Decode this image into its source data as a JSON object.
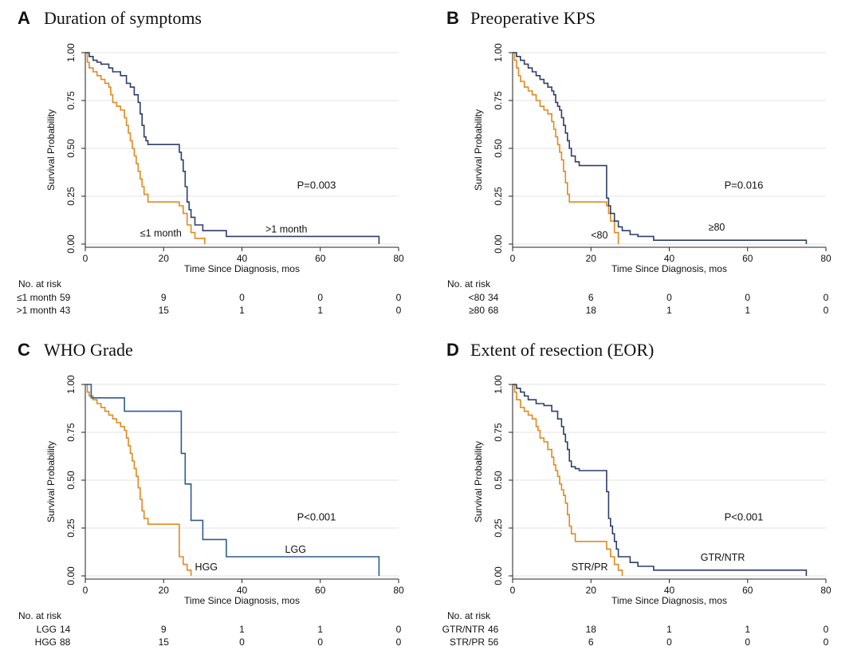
{
  "chart_data": [
    {
      "type": "line",
      "letter": "A",
      "title": "Duration of symptoms",
      "xlabel": "Time Since Diagnosis, mos",
      "ylabel": "Survival Probability",
      "xlim": [
        0,
        80
      ],
      "ylim": [
        0,
        1
      ],
      "xticks": [
        0,
        20,
        40,
        60,
        80
      ],
      "yticks": [
        "0.00",
        "0.25",
        "0.50",
        "0.75",
        "1.00"
      ],
      "pvalue": "P=0.003",
      "series": [
        {
          "name": "≤1 month",
          "color": "#e08a1e",
          "steps": [
            [
              0,
              1
            ],
            [
              0.5,
              0.95
            ],
            [
              1,
              0.92
            ],
            [
              2,
              0.9
            ],
            [
              3,
              0.88
            ],
            [
              4,
              0.86
            ],
            [
              5,
              0.84
            ],
            [
              6,
              0.82
            ],
            [
              6.5,
              0.78
            ],
            [
              7,
              0.74
            ],
            [
              8,
              0.72
            ],
            [
              9,
              0.7
            ],
            [
              10,
              0.66
            ],
            [
              10.5,
              0.62
            ],
            [
              11,
              0.58
            ],
            [
              11.5,
              0.54
            ],
            [
              12,
              0.5
            ],
            [
              12.5,
              0.46
            ],
            [
              13,
              0.42
            ],
            [
              13.5,
              0.38
            ],
            [
              14,
              0.34
            ],
            [
              14.5,
              0.3
            ],
            [
              15,
              0.26
            ],
            [
              16,
              0.22
            ],
            [
              24,
              0.2
            ],
            [
              25,
              0.16
            ],
            [
              26,
              0.1
            ],
            [
              27,
              0.06
            ],
            [
              28,
              0.03
            ],
            [
              30.5,
              0.0
            ]
          ],
          "label": "≤1 month",
          "label_at": [
            14,
            0.04
          ]
        },
        {
          "name": ">1 month",
          "color": "#2e3e6b",
          "steps": [
            [
              0,
              1
            ],
            [
              1,
              0.98
            ],
            [
              2,
              0.96
            ],
            [
              3,
              0.95
            ],
            [
              4,
              0.94
            ],
            [
              6,
              0.92
            ],
            [
              7,
              0.9
            ],
            [
              9,
              0.88
            ],
            [
              10.5,
              0.84
            ],
            [
              11.5,
              0.82
            ],
            [
              12.5,
              0.78
            ],
            [
              13.5,
              0.74
            ],
            [
              14,
              0.68
            ],
            [
              14.5,
              0.62
            ],
            [
              15,
              0.56
            ],
            [
              15.5,
              0.54
            ],
            [
              16,
              0.52
            ],
            [
              24,
              0.48
            ],
            [
              24.5,
              0.44
            ],
            [
              25,
              0.38
            ],
            [
              25.5,
              0.3
            ],
            [
              26,
              0.22
            ],
            [
              26.5,
              0.18
            ],
            [
              27,
              0.14
            ],
            [
              28,
              0.1
            ],
            [
              30,
              0.07
            ],
            [
              36,
              0.04
            ],
            [
              75,
              0.0
            ]
          ],
          "label": ">1 month",
          "label_at": [
            46,
            0.06
          ]
        }
      ],
      "risk": {
        "title": "No. at risk",
        "rows": [
          {
            "label": "≤1 month",
            "counts": [
              59,
              9,
              0,
              0,
              0
            ]
          },
          {
            "label": ">1 month",
            "counts": [
              43,
              15,
              1,
              1,
              0
            ]
          }
        ]
      }
    },
    {
      "type": "line",
      "letter": "B",
      "title": "Preoperative KPS",
      "xlabel": "Time Since Diagnosis, mos",
      "ylabel": "Survival Probability",
      "xlim": [
        0,
        80
      ],
      "ylim": [
        0,
        1
      ],
      "xticks": [
        0,
        20,
        40,
        60,
        80
      ],
      "yticks": [
        "0.00",
        "0.25",
        "0.50",
        "0.75",
        "1.00"
      ],
      "pvalue": "P=0.016",
      "series": [
        {
          "name": "<80",
          "color": "#e08a1e",
          "steps": [
            [
              0,
              1
            ],
            [
              0.5,
              0.96
            ],
            [
              1,
              0.92
            ],
            [
              1.5,
              0.88
            ],
            [
              2,
              0.85
            ],
            [
              3,
              0.82
            ],
            [
              4,
              0.8
            ],
            [
              5,
              0.78
            ],
            [
              6,
              0.75
            ],
            [
              7,
              0.72
            ],
            [
              8,
              0.7
            ],
            [
              9,
              0.68
            ],
            [
              10,
              0.64
            ],
            [
              10.5,
              0.6
            ],
            [
              11,
              0.56
            ],
            [
              11.5,
              0.52
            ],
            [
              12,
              0.48
            ],
            [
              12.5,
              0.44
            ],
            [
              13,
              0.38
            ],
            [
              13.5,
              0.32
            ],
            [
              14,
              0.26
            ],
            [
              14.5,
              0.22
            ],
            [
              24,
              0.2
            ],
            [
              24.5,
              0.16
            ],
            [
              25,
              0.12
            ],
            [
              26,
              0.06
            ],
            [
              27,
              0.0
            ]
          ],
          "label": "<80",
          "label_at": [
            20,
            0.03
          ]
        },
        {
          "name": "≥80",
          "color": "#2e3e6b",
          "steps": [
            [
              0,
              1
            ],
            [
              1,
              0.98
            ],
            [
              2,
              0.96
            ],
            [
              3,
              0.94
            ],
            [
              4,
              0.92
            ],
            [
              5,
              0.9
            ],
            [
              6,
              0.88
            ],
            [
              7,
              0.86
            ],
            [
              8,
              0.84
            ],
            [
              9,
              0.82
            ],
            [
              10,
              0.8
            ],
            [
              10.5,
              0.78
            ],
            [
              11,
              0.74
            ],
            [
              11.5,
              0.72
            ],
            [
              12,
              0.7
            ],
            [
              12.5,
              0.66
            ],
            [
              13,
              0.62
            ],
            [
              13.5,
              0.58
            ],
            [
              14,
              0.54
            ],
            [
              14.5,
              0.5
            ],
            [
              15,
              0.46
            ],
            [
              16,
              0.43
            ],
            [
              17,
              0.41
            ],
            [
              24,
              0.24
            ],
            [
              24.5,
              0.2
            ],
            [
              25,
              0.16
            ],
            [
              26,
              0.12
            ],
            [
              27,
              0.09
            ],
            [
              28,
              0.07
            ],
            [
              30,
              0.05
            ],
            [
              32,
              0.04
            ],
            [
              36,
              0.02
            ],
            [
              75,
              0.0
            ]
          ],
          "label": "≥80",
          "label_at": [
            50,
            0.07
          ]
        }
      ],
      "risk": {
        "title": "No. at risk",
        "rows": [
          {
            "label": "<80",
            "counts": [
              34,
              6,
              0,
              0,
              0
            ]
          },
          {
            "label": "≥80",
            "counts": [
              68,
              18,
              1,
              1,
              0
            ]
          }
        ]
      }
    },
    {
      "type": "line",
      "letter": "C",
      "title": "WHO Grade",
      "xlabel": "Time Since Diagnosis, mos",
      "ylabel": "Survival Probability",
      "xlim": [
        0,
        80
      ],
      "ylim": [
        0,
        1
      ],
      "xticks": [
        0,
        20,
        40,
        60,
        80
      ],
      "yticks": [
        "0.00",
        "0.25",
        "0.50",
        "0.75",
        "1.00"
      ],
      "pvalue": "P<0.001",
      "series": [
        {
          "name": "HGG",
          "color": "#e08a1e",
          "steps": [
            [
              0,
              1
            ],
            [
              0.5,
              0.96
            ],
            [
              1,
              0.94
            ],
            [
              2,
              0.92
            ],
            [
              3,
              0.9
            ],
            [
              4,
              0.88
            ],
            [
              5,
              0.86
            ],
            [
              6,
              0.84
            ],
            [
              7,
              0.82
            ],
            [
              8,
              0.8
            ],
            [
              9,
              0.78
            ],
            [
              10,
              0.76
            ],
            [
              10.5,
              0.72
            ],
            [
              11,
              0.68
            ],
            [
              11.5,
              0.64
            ],
            [
              12,
              0.6
            ],
            [
              12.5,
              0.56
            ],
            [
              13,
              0.52
            ],
            [
              13.5,
              0.46
            ],
            [
              14,
              0.4
            ],
            [
              14.5,
              0.34
            ],
            [
              15,
              0.3
            ],
            [
              16,
              0.27
            ],
            [
              24,
              0.1
            ],
            [
              25,
              0.06
            ],
            [
              26,
              0.03
            ],
            [
              27,
              0.0
            ]
          ],
          "label": "HGG",
          "label_at": [
            28,
            0.03
          ]
        },
        {
          "name": "LGG",
          "color": "#2e5a8a",
          "steps": [
            [
              0,
              1
            ],
            [
              1.5,
              0.93
            ],
            [
              10,
              0.86
            ],
            [
              24.5,
              0.64
            ],
            [
              25.5,
              0.48
            ],
            [
              27,
              0.29
            ],
            [
              30,
              0.19
            ],
            [
              36,
              0.1
            ],
            [
              75,
              0.0
            ]
          ],
          "label": "LGG",
          "label_at": [
            51,
            0.12
          ]
        }
      ],
      "risk": {
        "title": "No. at risk",
        "rows": [
          {
            "label": "LGG",
            "counts": [
              14,
              9,
              1,
              1,
              0
            ]
          },
          {
            "label": "HGG",
            "counts": [
              88,
              15,
              0,
              0,
              0
            ]
          }
        ]
      }
    },
    {
      "type": "line",
      "letter": "D",
      "title": "Extent of resection (EOR)",
      "xlabel": "Time Since Diagnosis, mos",
      "ylabel": "Survival Probability",
      "xlim": [
        0,
        80
      ],
      "ylim": [
        0,
        1
      ],
      "xticks": [
        0,
        20,
        40,
        60,
        80
      ],
      "yticks": [
        "0.00",
        "0.25",
        "0.50",
        "0.75",
        "1.00"
      ],
      "pvalue": "P<0.001",
      "series": [
        {
          "name": "STR/PR",
          "color": "#e08a1e",
          "steps": [
            [
              0,
              1
            ],
            [
              0.5,
              0.96
            ],
            [
              1,
              0.92
            ],
            [
              2,
              0.88
            ],
            [
              3,
              0.86
            ],
            [
              4,
              0.84
            ],
            [
              5,
              0.82
            ],
            [
              6,
              0.78
            ],
            [
              6.5,
              0.76
            ],
            [
              7,
              0.72
            ],
            [
              8,
              0.7
            ],
            [
              9,
              0.66
            ],
            [
              10,
              0.62
            ],
            [
              10.5,
              0.58
            ],
            [
              11,
              0.55
            ],
            [
              11.5,
              0.52
            ],
            [
              12,
              0.48
            ],
            [
              12.5,
              0.45
            ],
            [
              13,
              0.42
            ],
            [
              13.5,
              0.38
            ],
            [
              14,
              0.32
            ],
            [
              14.5,
              0.26
            ],
            [
              15,
              0.22
            ],
            [
              16,
              0.18
            ],
            [
              24,
              0.14
            ],
            [
              25,
              0.1
            ],
            [
              26,
              0.06
            ],
            [
              27,
              0.03
            ],
            [
              28,
              0.0
            ]
          ],
          "label": "STR/PR",
          "label_at": [
            15,
            0.03
          ]
        },
        {
          "name": "GTR/NTR",
          "color": "#2e3e6b",
          "steps": [
            [
              0,
              1
            ],
            [
              1,
              0.98
            ],
            [
              2,
              0.96
            ],
            [
              3,
              0.94
            ],
            [
              4,
              0.92
            ],
            [
              6,
              0.9
            ],
            [
              8,
              0.89
            ],
            [
              10,
              0.86
            ],
            [
              11.5,
              0.82
            ],
            [
              12.5,
              0.78
            ],
            [
              13,
              0.74
            ],
            [
              13.5,
              0.7
            ],
            [
              14,
              0.66
            ],
            [
              14.5,
              0.6
            ],
            [
              15,
              0.57
            ],
            [
              16,
              0.56
            ],
            [
              17,
              0.55
            ],
            [
              24,
              0.44
            ],
            [
              24.5,
              0.3
            ],
            [
              25,
              0.26
            ],
            [
              25.5,
              0.22
            ],
            [
              26,
              0.18
            ],
            [
              26.5,
              0.14
            ],
            [
              27,
              0.1
            ],
            [
              30,
              0.07
            ],
            [
              32,
              0.05
            ],
            [
              36,
              0.03
            ],
            [
              75,
              0.0
            ]
          ],
          "label": "GTR/NTR",
          "label_at": [
            48,
            0.08
          ]
        }
      ],
      "risk": {
        "title": "No. at risk",
        "rows": [
          {
            "label": "GTR/NTR",
            "counts": [
              46,
              18,
              1,
              1,
              0
            ]
          },
          {
            "label": "STR/PR",
            "counts": [
              56,
              6,
              0,
              0,
              0
            ]
          }
        ]
      }
    }
  ]
}
